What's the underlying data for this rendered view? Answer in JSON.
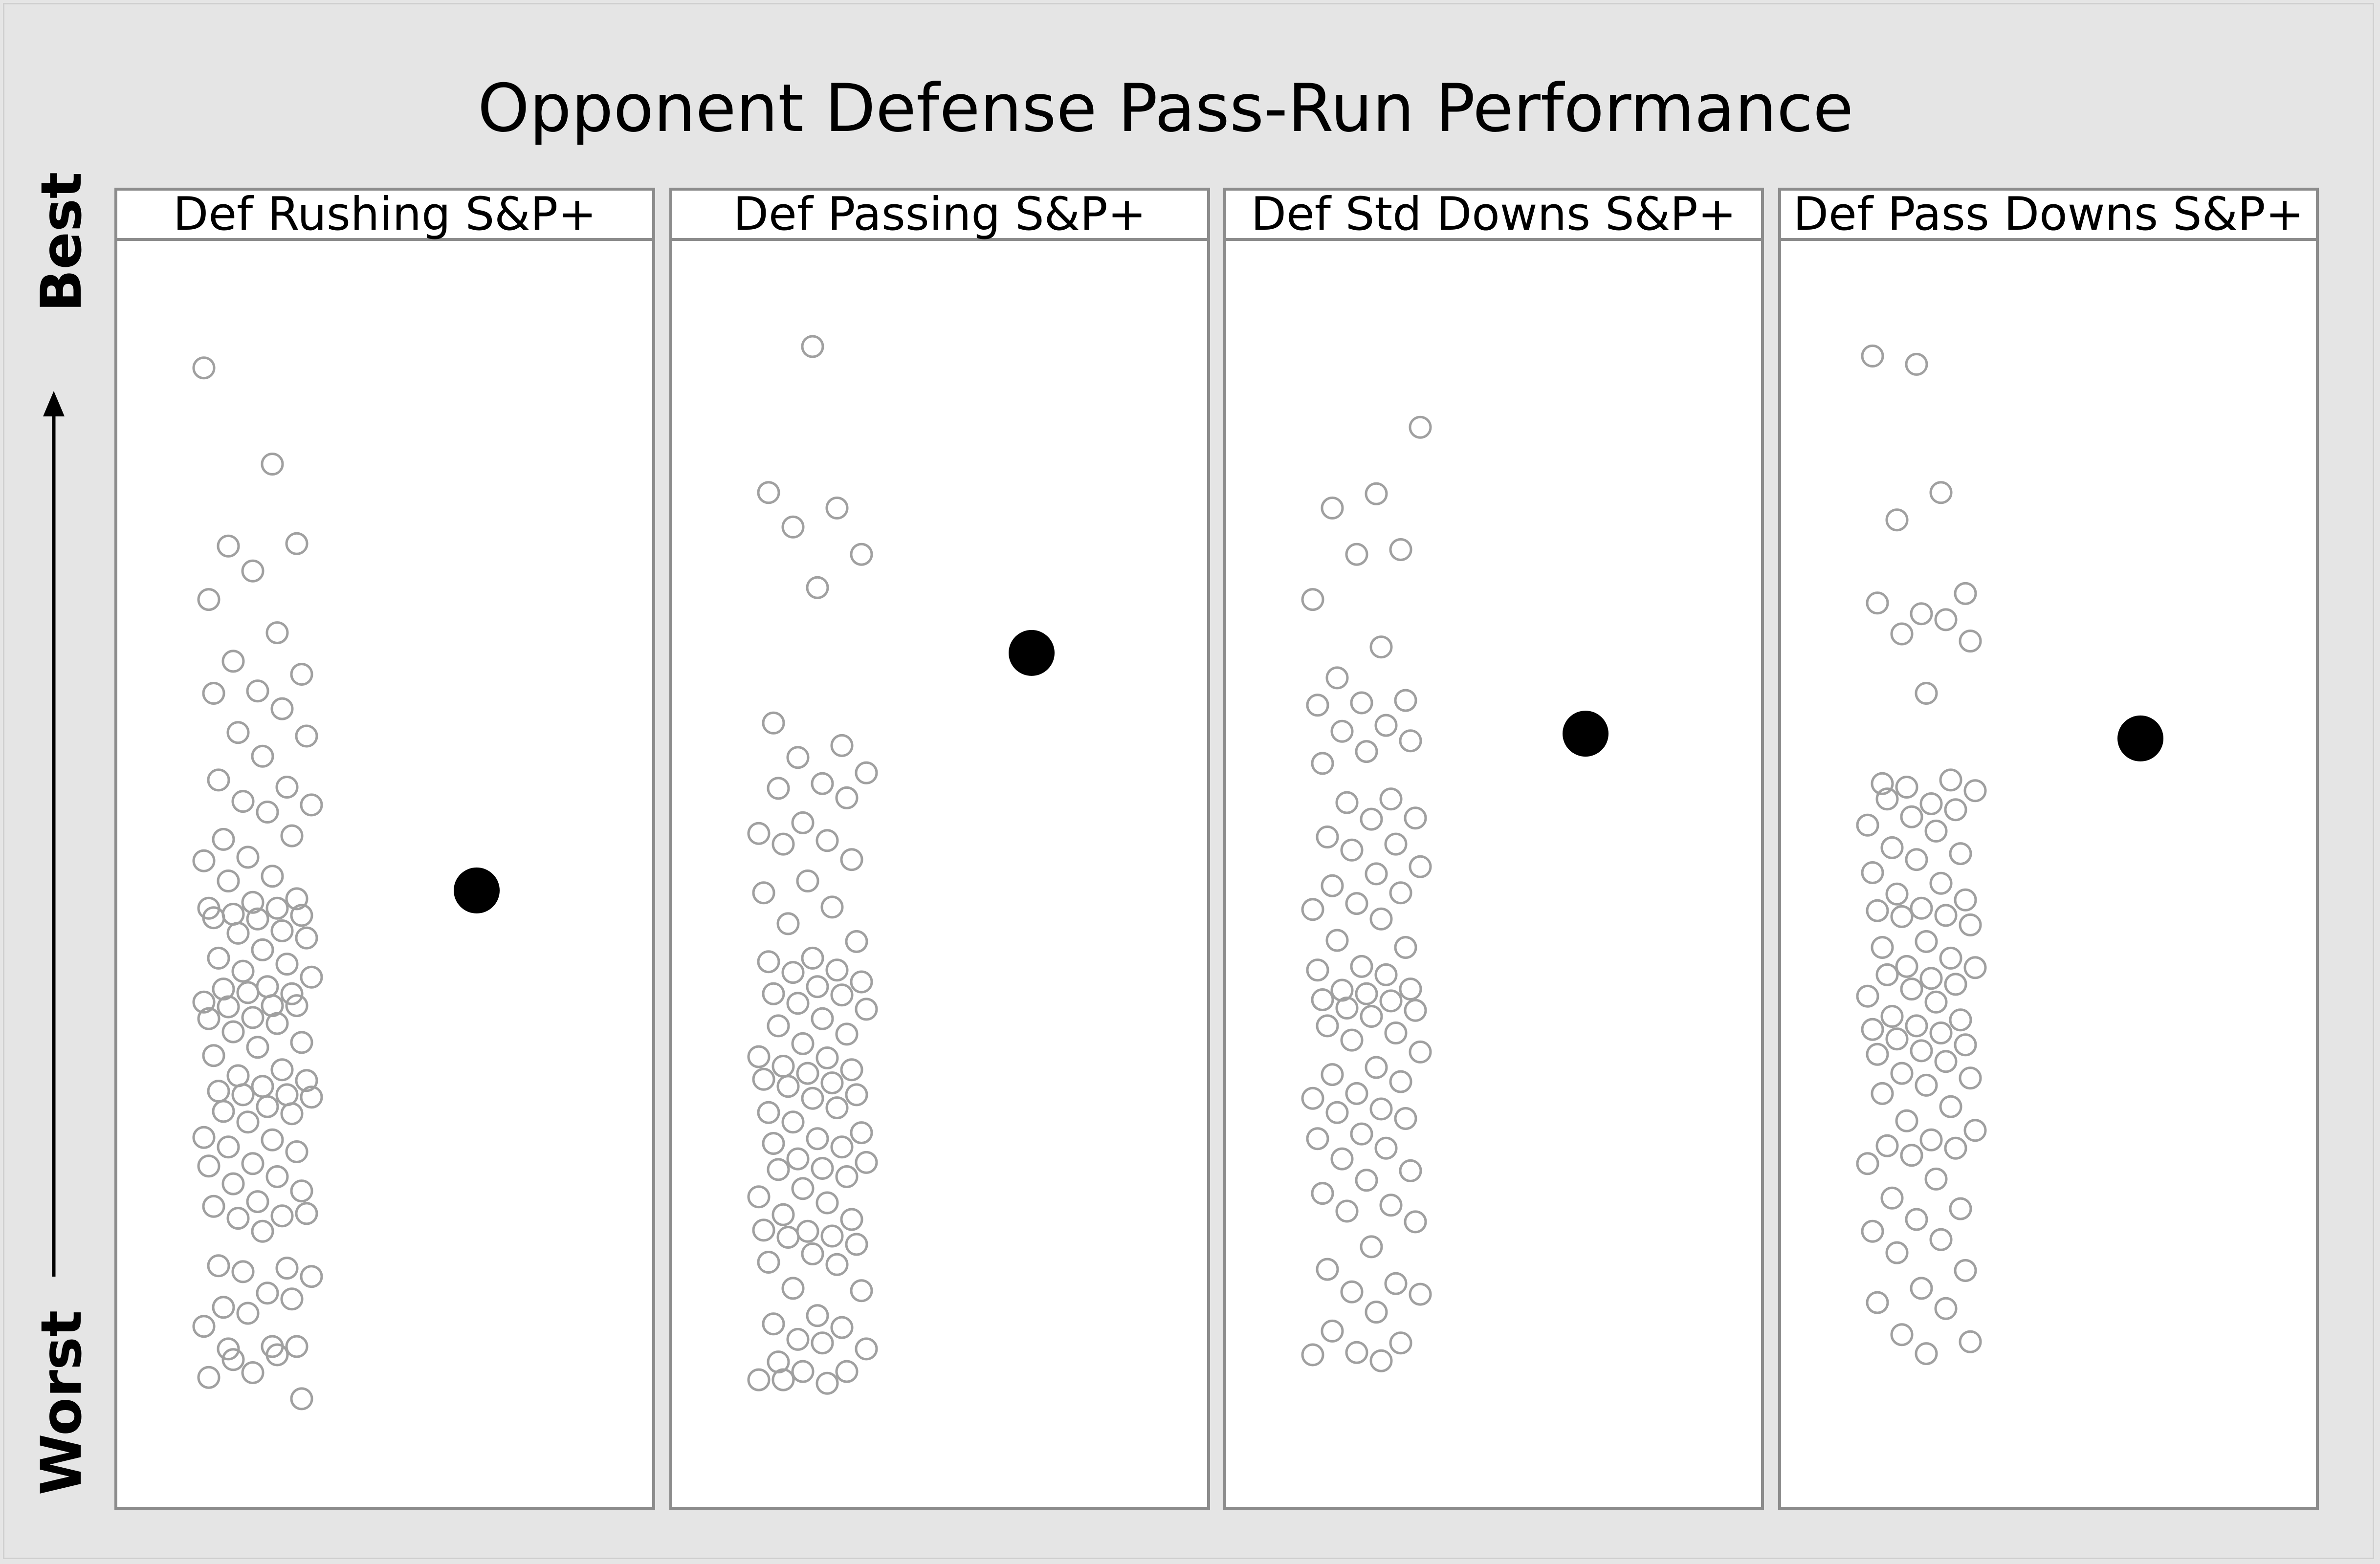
{
  "chart_data": {
    "type": "scatter",
    "title": "Opponent Defense Pass-Run Performance",
    "ylabel_top": "Best",
    "ylabel_bottom": "Worst",
    "ylim": [
      0,
      100
    ],
    "grid": false,
    "legend": "none",
    "colors": {
      "others": "#a0a0a0",
      "highlight": "#000000",
      "panel_border": "#8c8c8c",
      "background": "#e5e5e5"
    },
    "panels": [
      {
        "label": "Def Rushing S&P+",
        "highlight": 47.0,
        "values": [
          91.0,
          82.9,
          76.0,
          76.2,
          73.9,
          71.5,
          68.7,
          66.3,
          65.2,
          63.8,
          63.6,
          62.3,
          60.3,
          60.0,
          58.3,
          56.3,
          55.7,
          54.5,
          54.2,
          53.6,
          51.3,
          51.6,
          49.8,
          49.5,
          48.2,
          47.8,
          46.3,
          46.0,
          45.5,
          45.5,
          45.0,
          44.9,
          44.6,
          44.7,
          43.6,
          43.4,
          43.0,
          42.0,
          41.3,
          40.8,
          40.2,
          39.7,
          38.9,
          38.7,
          38.3,
          38.4,
          37.6,
          37.3,
          37.2,
          37.3,
          36.3,
          36.2,
          35.8,
          35.1,
          34.2,
          33.8,
          33.1,
          31.9,
          31.4,
          31.0,
          30.5,
          30.1,
          29.8,
          29.8,
          29.6,
          28.8,
          28.4,
          28.2,
          27.5,
          26.2,
          26.0,
          25.4,
          25.0,
          24.0,
          23.8,
          22.9,
          22.3,
          21.7,
          20.8,
          20.4,
          19.6,
          19.4,
          19.8,
          18.3,
          15.4,
          15.2,
          14.9,
          14.5,
          13.1,
          11.9,
          12.6,
          11.4,
          10.3,
          8.6,
          8.4,
          8.6,
          6.4,
          6.0,
          7.9,
          7.5,
          4.2
        ]
      },
      {
        "label": "Def Passing S&P+",
        "highlight": 67.0,
        "values": [
          92.8,
          80.5,
          79.2,
          77.6,
          75.3,
          72.5,
          61.1,
          59.2,
          58.2,
          56.9,
          56.0,
          55.6,
          54.8,
          52.7,
          51.8,
          51.2,
          50.9,
          49.6,
          47.8,
          46.8,
          45.6,
          44.2,
          42.7,
          41.3,
          41.0,
          40.3,
          40.1,
          39.3,
          38.9,
          38.3,
          38.2,
          37.5,
          37.0,
          36.2,
          35.6,
          34.9,
          34.1,
          33.0,
          32.9,
          32.2,
          31.9,
          31.6,
          31.1,
          30.8,
          30.5,
          29.8,
          29.5,
          28.3,
          28.7,
          27.5,
          26.6,
          26.1,
          25.7,
          25.4,
          24.4,
          24.1,
          23.6,
          23.5,
          22.9,
          21.9,
          21.2,
          20.7,
          19.7,
          19.3,
          18.3,
          18.4,
          17.9,
          17.8,
          17.2,
          16.4,
          15.7,
          15.5,
          13.5,
          13.3,
          11.2,
          10.5,
          10.2,
          9.2,
          8.4,
          8.9,
          7.3,
          6.5,
          6.5,
          5.8,
          5.5,
          5.8
        ]
      },
      {
        "label": "Def Std Downs S&P+",
        "highlight": 60.2,
        "values": [
          86.0,
          80.4,
          79.2,
          75.7,
          75.3,
          71.5,
          67.5,
          64.9,
          63.0,
          62.8,
          62.6,
          60.9,
          60.4,
          59.6,
          58.7,
          57.7,
          54.7,
          54.4,
          53.1,
          53.0,
          51.5,
          50.9,
          50.4,
          49.0,
          48.4,
          47.4,
          46.8,
          45.9,
          45.4,
          44.6,
          42.8,
          42.2,
          40.6,
          40.3,
          39.9,
          38.6,
          38.7,
          38.3,
          37.8,
          37.7,
          37.1,
          36.9,
          36.4,
          35.6,
          35.0,
          34.4,
          33.4,
          32.1,
          31.5,
          30.9,
          29.9,
          29.5,
          28.6,
          28.3,
          27.8,
          26.5,
          26.1,
          25.3,
          24.4,
          23.4,
          22.6,
          21.5,
          20.5,
          20.0,
          19.1,
          17.0,
          15.1,
          13.9,
          13.2,
          13.0,
          11.5,
          9.9,
          8.9,
          8.1,
          7.9,
          7.4
        ]
      },
      {
        "label": "Def Pass Downs S&P+",
        "highlight": 59.8,
        "values": [
          91.3,
          92.0,
          80.5,
          78.2,
          72.0,
          70.3,
          71.2,
          69.8,
          68.6,
          68.0,
          63.6,
          56.0,
          56.3,
          55.7,
          55.4,
          54.3,
          54.7,
          53.8,
          53.2,
          52.5,
          52.0,
          50.6,
          50.1,
          49.6,
          48.5,
          47.6,
          46.7,
          46.2,
          45.5,
          45.3,
          44.9,
          44.8,
          44.1,
          42.7,
          42.2,
          41.3,
          40.6,
          40.5,
          39.6,
          39.9,
          39.1,
          38.7,
          38.1,
          37.6,
          36.4,
          36.1,
          35.6,
          35.3,
          35.0,
          34.5,
          34.0,
          33.5,
          33.2,
          32.6,
          31.6,
          31.2,
          30.6,
          29.9,
          28.8,
          27.6,
          26.8,
          26.0,
          25.5,
          25.3,
          24.7,
          24.0,
          22.7,
          21.1,
          20.2,
          19.3,
          18.3,
          17.6,
          16.5,
          15.0,
          13.5,
          12.3,
          11.8,
          9.6,
          9.0,
          8.0
        ]
      }
    ]
  }
}
